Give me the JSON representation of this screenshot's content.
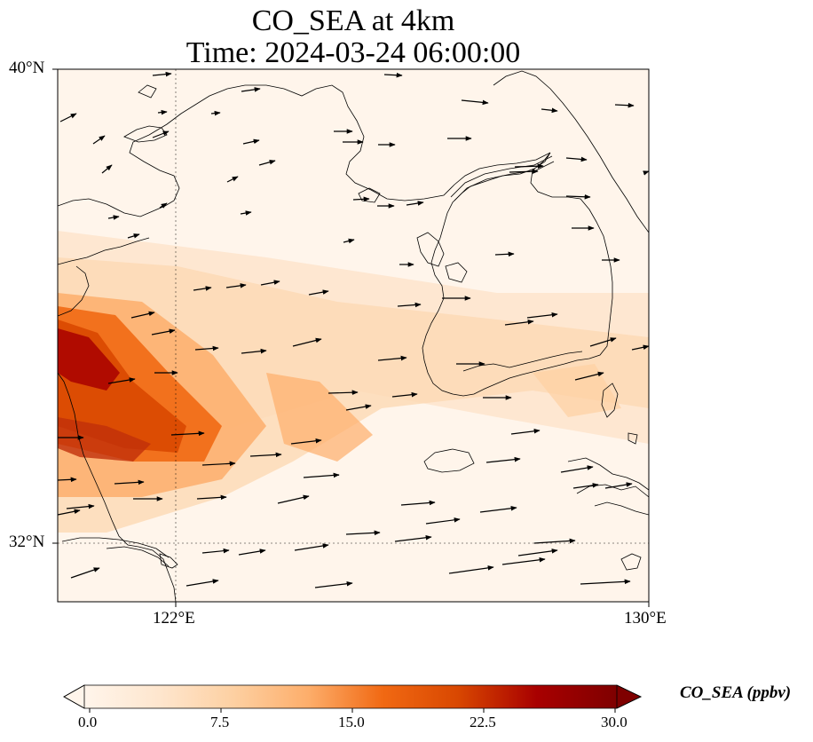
{
  "title": {
    "line1": "CO_SEA at 4km",
    "line2": "Time: 2024-03-24 06:00:00"
  },
  "axes": {
    "lat_ticks": [
      "40°N",
      "32°N"
    ],
    "lon_ticks": [
      "122°E",
      "130°E"
    ]
  },
  "colorbar": {
    "label": "CO_SEA (ppbv)",
    "ticks": [
      "0.0",
      "7.5",
      "15.0",
      "22.5",
      "30.0"
    ],
    "colors": [
      "#fff5eb",
      "#fee6ce",
      "#fdd0a2",
      "#fdae6b",
      "#f16913",
      "#d94801",
      "#a80000",
      "#7f0000"
    ]
  }
}
